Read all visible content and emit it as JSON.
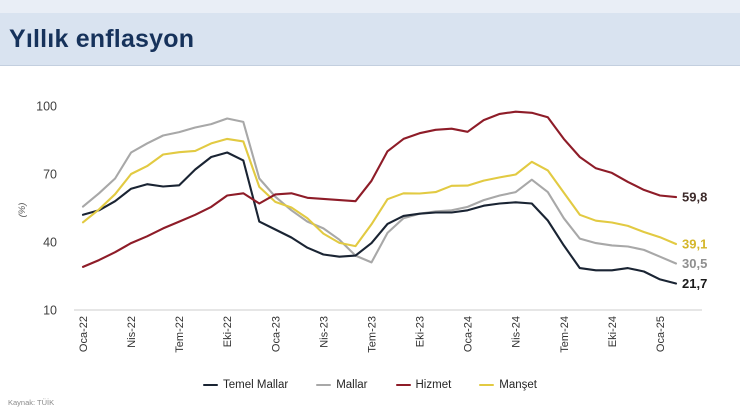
{
  "header": {
    "title": "Yıllık enflasyon"
  },
  "source_note": "Kaynak: TÜİK",
  "chart_data": {
    "type": "line",
    "title": "Yıllık enflasyon",
    "ylabel": "(%)",
    "ylim": [
      10,
      100
    ],
    "y_ticks": [
      10,
      40,
      70,
      100
    ],
    "grid": false,
    "legend_position": "bottom",
    "x_tick_every": 3,
    "x": [
      "Oca-22",
      "Şub-22",
      "Mar-22",
      "Nis-22",
      "May-22",
      "Haz-22",
      "Tem-22",
      "Ağu-22",
      "Eyl-22",
      "Eki-22",
      "Kas-22",
      "Ara-22",
      "Oca-23",
      "Şub-23",
      "Mar-23",
      "Nis-23",
      "May-23",
      "Haz-23",
      "Tem-23",
      "Ağu-23",
      "Eyl-23",
      "Eki-23",
      "Kas-23",
      "Ara-23",
      "Oca-24",
      "Şub-24",
      "Mar-24",
      "Nis-24",
      "May-24",
      "Haz-24",
      "Tem-24",
      "Ağu-24",
      "Eyl-24",
      "Eki-24",
      "Kas-24",
      "Ara-24",
      "Oca-25",
      "Şub-25"
    ],
    "series": [
      {
        "name": "Temel Mallar",
        "color": "#1a2433",
        "end_label": "21,7",
        "end_label_color": "#1a1a1a",
        "values": [
          52,
          54,
          58,
          63.5,
          65.5,
          64.5,
          65,
          72,
          77.5,
          79.5,
          76,
          49,
          45.5,
          42,
          37.5,
          34.5,
          33.5,
          34,
          39.5,
          48,
          51.5,
          52.5,
          53,
          53,
          54,
          56,
          57,
          57.5,
          57,
          49.5,
          38.5,
          28.5,
          27.5,
          27.5,
          28.5,
          27,
          23.5,
          21.7
        ]
      },
      {
        "name": "Mallar",
        "color": "#a8a8a8",
        "end_label": "30,5",
        "end_label_color": "#8f8f8f",
        "values": [
          55.6,
          61.5,
          68,
          79.5,
          83.5,
          87,
          88.5,
          90.5,
          92,
          94.5,
          93,
          68,
          60,
          54,
          49,
          46,
          41,
          34,
          31,
          44,
          50.5,
          52.5,
          53.5,
          54,
          55.5,
          58.5,
          60.5,
          62,
          67.5,
          62,
          50.5,
          41.5,
          39.5,
          38.5,
          38,
          36.5,
          33.5,
          30.5
        ]
      },
      {
        "name": "Hizmet",
        "color": "#8e1c28",
        "end_label": "59,8",
        "end_label_color": "#3d2b2b",
        "values": [
          29,
          32,
          35.5,
          39.5,
          42.5,
          46,
          49,
          52,
          55.5,
          60.5,
          61.5,
          57,
          61,
          61.5,
          59.5,
          59,
          58.5,
          58,
          67,
          80,
          85.5,
          88,
          89.5,
          90,
          88.6,
          93.8,
          96.5,
          97.5,
          97,
          95,
          85.5,
          77.5,
          72.5,
          70.5,
          66.5,
          63,
          60.5,
          59.8
        ]
      },
      {
        "name": "Manşet",
        "color": "#e2ca42",
        "end_label": "39,1",
        "end_label_color": "#d4b62a",
        "values": [
          48.7,
          54.4,
          61.1,
          70,
          73.5,
          78.6,
          79.6,
          80.2,
          83.5,
          85.5,
          84.4,
          64.3,
          57.7,
          55.2,
          50.5,
          43.7,
          39.6,
          38.2,
          47.8,
          58.9,
          61.5,
          61.4,
          62,
          64.8,
          64.9,
          67.1,
          68.5,
          69.8,
          75.4,
          71.6,
          61.8,
          52,
          49.4,
          48.6,
          47.1,
          44.4,
          42.1,
          39.1
        ]
      }
    ]
  }
}
